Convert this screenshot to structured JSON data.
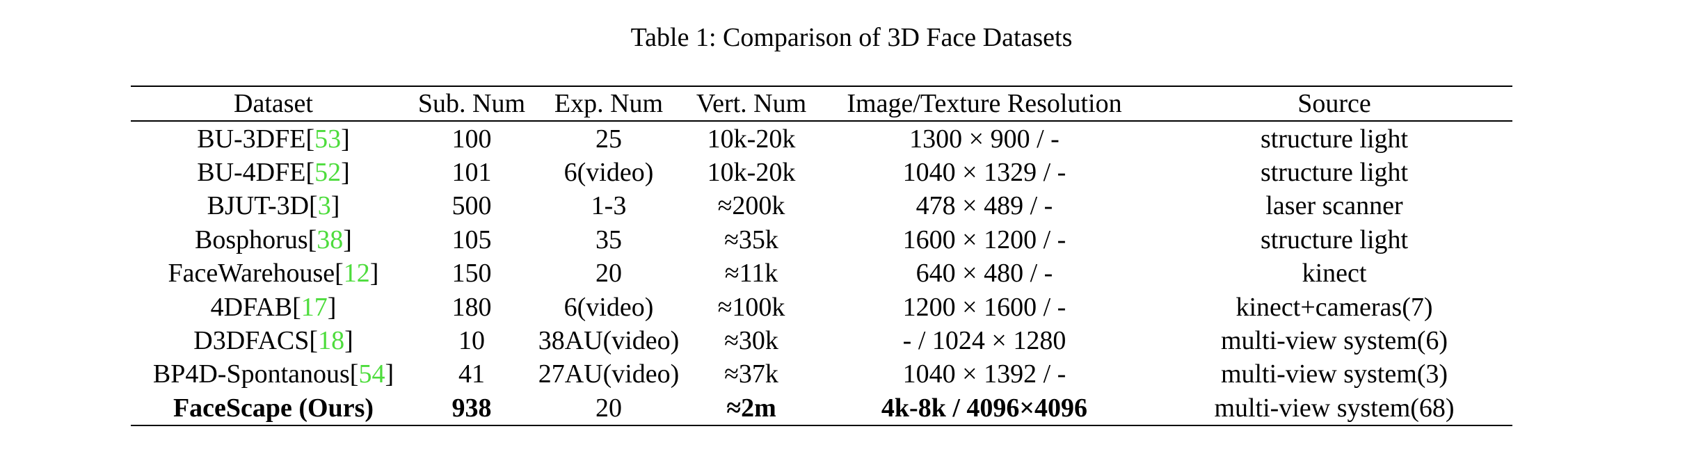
{
  "caption": "Table 1: Comparison of 3D Face Datasets",
  "colors": {
    "citation": "#4ddc3c",
    "text": "#000000"
  },
  "headers": [
    "Dataset",
    "Sub. Num",
    "Exp. Num",
    "Vert. Num",
    "Image/Texture Resolution",
    "Source"
  ],
  "rows": [
    {
      "name": "BU-3DFE",
      "cite": "53",
      "sub": "100",
      "exp": "25",
      "vert": "10k-20k",
      "res": "1300 × 900 / -",
      "source": "structure light"
    },
    {
      "name": "BU-4DFE",
      "cite": "52",
      "sub": "101",
      "exp": "6(video)",
      "vert": "10k-20k",
      "res": "1040 × 1329 / -",
      "source": "structure light"
    },
    {
      "name": "BJUT-3D",
      "cite": "3",
      "sub": "500",
      "exp": "1-3",
      "vert": "≈200k",
      "res": "478 × 489 / -",
      "source": "laser scanner"
    },
    {
      "name": "Bosphorus",
      "cite": "38",
      "sub": "105",
      "exp": "35",
      "vert": "≈35k",
      "res": "1600 × 1200 / -",
      "source": "structure light"
    },
    {
      "name": "FaceWarehouse",
      "cite": "12",
      "sub": "150",
      "exp": "20",
      "vert": "≈11k",
      "res": "640 × 480 / -",
      "source": "kinect"
    },
    {
      "name": "4DFAB",
      "cite": "17",
      "sub": "180",
      "exp": "6(video)",
      "vert": "≈100k",
      "res": "1200 × 1600 / -",
      "source": "kinect+cameras(7)"
    },
    {
      "name": "D3DFACS",
      "cite": "18",
      "sub": "10",
      "exp": "38AU(video)",
      "vert": "≈30k",
      "res": "- / 1024 × 1280",
      "source": "multi-view system(6)"
    },
    {
      "name": "BP4D-Spontanous",
      "cite": "54",
      "sub": "41",
      "exp": "27AU(video)",
      "vert": "≈37k",
      "res": "1040 × 1392 / -",
      "source": "multi-view system(3)"
    }
  ],
  "ours": {
    "name": "FaceScape (Ours)",
    "sub": "938",
    "exp": "20",
    "vert": "≈2m",
    "res": "4k-8k / 4096×4096",
    "source": "multi-view system(68)"
  }
}
